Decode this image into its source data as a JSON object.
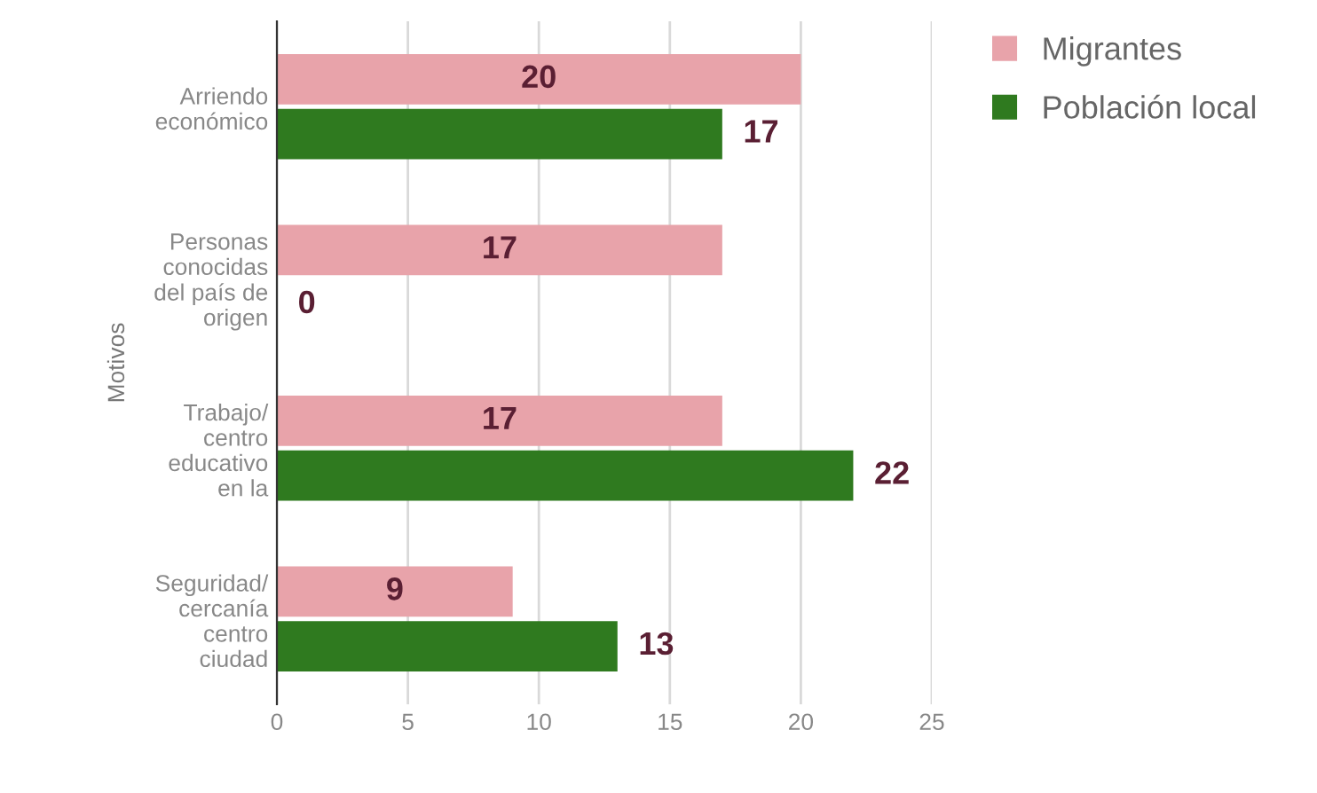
{
  "chart_data": {
    "type": "bar",
    "orientation": "horizontal",
    "ylabel": "Motivos",
    "categories": [
      "Arriendo\neconómico",
      "Personas\nconocidas\ndel país de\norigen",
      "Trabajo/\ncentro\neducativo\nen la",
      "Seguridad/\ncercanía\ncentro\nciudad"
    ],
    "series": [
      {
        "name": "Migrantes",
        "color": "#e8a3aa",
        "values": [
          20,
          17,
          17,
          9
        ]
      },
      {
        "name": "Población local",
        "color": "#2f7a1f",
        "values": [
          17,
          0,
          22,
          13
        ]
      }
    ],
    "xlim": [
      0,
      25
    ],
    "xticks": [
      0,
      5,
      10,
      15,
      20,
      25
    ],
    "grid": "x",
    "legend": "top right",
    "data_labels": true
  }
}
